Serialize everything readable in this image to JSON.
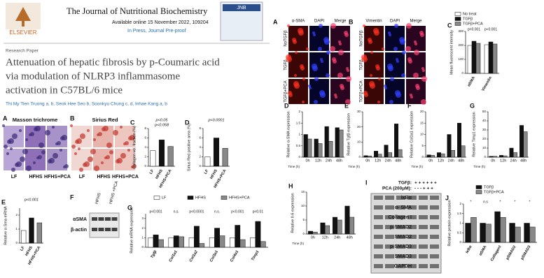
{
  "header": {
    "journal": "The Journal of Nutritional Biochemistry",
    "available": "Available online 15 November 2022, 109204",
    "in_press": "In Press, Journal Pre-proof",
    "publisher": "ELSEVIER",
    "cover": "JNB",
    "section": "Research Paper",
    "title_lines": [
      "Attenuation of hepatic fibrosis by p-Coumaric acid",
      "via modulation of NLRP3 inflammasome",
      "activation in C57BL/6 mice"
    ],
    "authors": "Thi My Tien Truong a, b, Seok Hee Seo b, Soonkyu Chung c, d, Inhae Kang a, b"
  },
  "panels": {
    "masson": {
      "letter": "A",
      "title": "Masson trichrome",
      "groups": [
        "LF",
        "HFHS",
        "HFHS+PCA"
      ]
    },
    "sirius": {
      "letter": "B",
      "title": "Sirius Red",
      "groups": [
        "LF",
        "HFHS",
        "HFHS+PCA"
      ]
    },
    "blot_f": {
      "letter": "F",
      "lanes": [
        "HFHS",
        "HFHS +PCA"
      ],
      "rows": [
        "αSMA",
        "β-actin"
      ]
    },
    "if_sma": {
      "letter": "A",
      "columns": [
        "α-SMA",
        "DAPI",
        "Merge"
      ],
      "rows": [
        "NoTGFβ",
        "TGFβ",
        "TGFβ+PCA"
      ]
    },
    "if_vim": {
      "letter": "B",
      "columns": [
        "Vimentin",
        "DAPI",
        "Merge"
      ],
      "rows": [
        "NoTGFβ",
        "TGFβ",
        "TGFβ+PCA"
      ]
    },
    "blot_i": {
      "letter": "I",
      "tgf": "TGFβ:",
      "tgf_signs": "+ + + + + +",
      "pca": "PCA (200μM):",
      "pca_signs": "- - - + + +",
      "rows": [
        "iκBα",
        "α- SMA",
        "Collagen I",
        "p-SMAD2",
        "SMAD2",
        "p-SMAD3",
        "SMAD3",
        "GAPDH"
      ]
    }
  },
  "chart_data": [
    {
      "type": "bar",
      "letter": "C",
      "ylabel": "Collagen vol. fraction (%)",
      "categories": [
        "LF",
        "HFHS",
        "HFHS+PCA"
      ],
      "values": [
        3.3,
        5.6,
        4.2
      ],
      "colors": [
        "#ffffff",
        "#111111",
        "#888888"
      ],
      "ylim": [
        0,
        8
      ],
      "yticks": [
        0,
        2,
        4,
        6,
        8
      ],
      "annotations": [
        "p<0.05",
        "p<0.058"
      ]
    },
    {
      "type": "bar",
      "letter": "D",
      "ylabel": "Sirius Red positive area (%)",
      "categories": [
        "LF",
        "HFHS",
        "HFHS+PCA"
      ],
      "values": [
        2,
        6,
        3.8
      ],
      "colors": [
        "#ffffff",
        "#111111",
        "#888888"
      ],
      "ylim": [
        0,
        8
      ],
      "yticks": [
        0,
        2,
        4,
        6,
        8
      ],
      "annotations": [
        "p<0.0001"
      ]
    },
    {
      "type": "bar",
      "letter": "E",
      "ylabel": "Relative α-Sma mRNA",
      "categories": [
        "LF",
        "HFHS",
        "HFHS+PCA"
      ],
      "values": [
        0.9,
        1.8,
        1.45
      ],
      "colors": [
        "#ffffff",
        "#111111",
        "#888888"
      ],
      "ylim": [
        0,
        2.5
      ],
      "yticks": [
        0,
        1,
        2
      ],
      "annotations": [
        "p<0.001"
      ]
    },
    {
      "type": "bar",
      "letter": "G",
      "ylabel": "Relative mRNA expression",
      "categories": [
        "Tgfβ",
        "Col1a1",
        "Col1a2",
        "Col3a1",
        "Col4a1",
        "Timp1"
      ],
      "series": [
        {
          "name": "LF",
          "color": "#ffffff",
          "values": [
            1,
            1,
            1,
            1,
            1,
            1
          ]
        },
        {
          "name": "HFHS",
          "color": "#111111",
          "values": [
            1.3,
            1.2,
            2.2,
            2,
            2.3,
            2.7
          ]
        },
        {
          "name": "HFHS+PCA",
          "color": "#888888",
          "values": [
            0.8,
            1.1,
            0.4,
            1.2,
            0.8,
            0.6
          ]
        }
      ],
      "ylim": [
        0,
        3.5
      ],
      "yticks": [
        0,
        1,
        2,
        3
      ],
      "group_labels": [
        "p<0.001",
        "n.s.",
        "p<0.0001",
        "n.s.",
        "p<0.001",
        "p<0.01"
      ]
    },
    {
      "type": "bar",
      "letter": "C",
      "ylabel": "Mean fluorescent intensity",
      "categories": [
        "αSMA",
        "Vimentin"
      ],
      "series": [
        {
          "name": "No treat",
          "color": "#ffffff",
          "values": [
            200,
            205
          ]
        },
        {
          "name": "TGFβ",
          "color": "#111111",
          "values": [
            230,
            225
          ]
        },
        {
          "name": "TGFβ+PCA",
          "color": "#888888",
          "values": [
            215,
            210
          ]
        }
      ],
      "ylim": [
        0,
        300
      ],
      "yticks": [
        0,
        100,
        200,
        300
      ],
      "group_labels": [
        "p=0.001",
        "p<0.001"
      ]
    },
    {
      "type": "bar",
      "letter": "D",
      "ylabel": "Relative α-SMA expression",
      "xlabel": "Time (h)",
      "categories": [
        "0h",
        "12h",
        "24h",
        "48h"
      ],
      "series": [
        {
          "color": "#111111",
          "values": [
            1,
            0.8,
            1.35,
            1.3
          ]
        },
        {
          "color": "#888888",
          "values": [
            0.8,
            0.6,
            0.7,
            1.2
          ]
        }
      ],
      "ylim": [
        0,
        2
      ],
      "yticks": [
        0,
        0.5,
        1,
        1.5,
        2
      ]
    },
    {
      "type": "bar",
      "letter": "E",
      "ylabel": "Relative Tgfβ expression",
      "xlabel": "Time (h)",
      "categories": [
        "0h",
        "12h",
        "24h",
        "48h"
      ],
      "series": [
        {
          "color": "#111111",
          "values": [
            1,
            4,
            8,
            22
          ]
        },
        {
          "color": "#888888",
          "values": [
            0.8,
            2,
            3,
            5
          ]
        }
      ],
      "ylim": [
        0,
        30
      ],
      "yticks": [
        0,
        10,
        20,
        30
      ]
    },
    {
      "type": "bar",
      "letter": "F",
      "ylabel": "Relative Col1a1 expression",
      "xlabel": "Time (h)",
      "categories": [
        "0h",
        "12h",
        "24h",
        "48h"
      ],
      "series": [
        {
          "color": "#111111",
          "values": [
            1,
            2,
            10,
            15
          ]
        },
        {
          "color": "#888888",
          "values": [
            0.8,
            1.5,
            3,
            5
          ]
        }
      ],
      "ylim": [
        0,
        20
      ],
      "yticks": [
        0,
        5,
        10,
        15,
        20
      ]
    },
    {
      "type": "bar",
      "letter": "G",
      "ylabel": "Relative Timp1 expression",
      "xlabel": "Time (h)",
      "categories": [
        "0h",
        "12h",
        "24h",
        "48h"
      ],
      "series": [
        {
          "color": "#111111",
          "values": [
            1,
            2,
            10,
            35
          ]
        },
        {
          "color": "#888888",
          "values": [
            1,
            1.5,
            5,
            28
          ]
        }
      ],
      "ylim": [
        0,
        50
      ],
      "yticks": [
        0,
        10,
        20,
        30,
        40,
        50
      ]
    },
    {
      "type": "bar",
      "letter": "H",
      "ylabel": "Relative Il-6 expression",
      "xlabel": "Time (h)",
      "categories": [
        "0h",
        "12h",
        "24h",
        "48h"
      ],
      "series": [
        {
          "color": "#111111",
          "values": [
            1,
            4,
            6,
            10
          ]
        },
        {
          "color": "#888888",
          "values": [
            0.7,
            3,
            5,
            6
          ]
        }
      ],
      "ylim": [
        0,
        15
      ],
      "yticks": [
        0,
        5,
        10,
        15
      ]
    },
    {
      "type": "bar",
      "letter": "J",
      "ylabel": "Relative protein expression",
      "categories": [
        "IκBα",
        "αSMA",
        "CollagenI",
        "pSMAD2",
        "pSMAD3"
      ],
      "series": [
        {
          "name": "TGFβ",
          "color": "#111111",
          "values": [
            1,
            1,
            1.6,
            1,
            1
          ]
        },
        {
          "name": "TGFβ+PCA",
          "color": "#888888",
          "values": [
            1.3,
            0.95,
            1.3,
            0.8,
            0.8
          ]
        }
      ],
      "ylim": [
        0,
        2
      ],
      "yticks": [
        0,
        0.5,
        1,
        1.5,
        2
      ],
      "group_labels": [
        "*",
        "n.s",
        "*",
        "*",
        "*"
      ]
    }
  ]
}
